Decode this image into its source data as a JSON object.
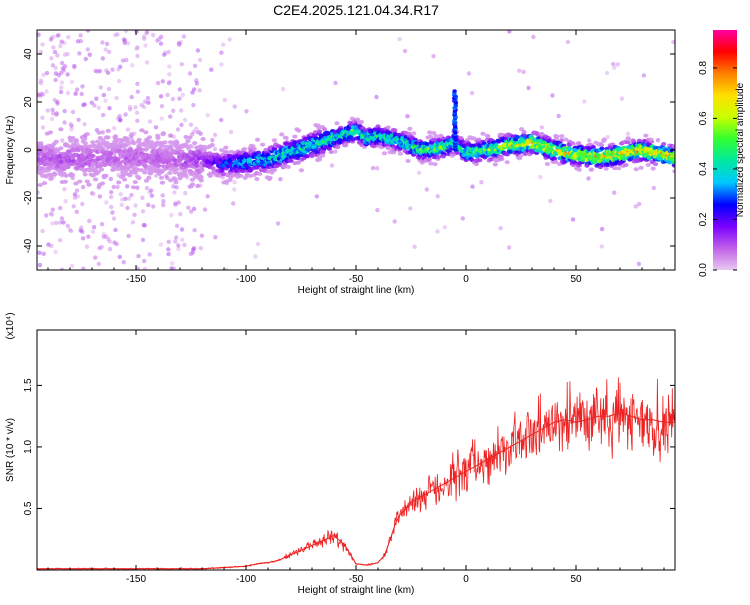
{
  "title": "C2E4.2025.121.04.34.R17",
  "chart_data": [
    {
      "type": "heatmap",
      "xlabel": "Height of straight line (km)",
      "ylabel": "Frequency (Hz)",
      "xlim": [
        -195,
        95
      ],
      "ylim": [
        -50,
        50
      ],
      "xticks": [
        -150,
        -100,
        -50,
        0,
        50
      ],
      "yticks": [
        -40,
        -20,
        0,
        20,
        40
      ],
      "colorbar": {
        "label": "Normalized spectral amplitude",
        "range": [
          0,
          0.95
        ],
        "ticks": [
          0.0,
          0.2,
          0.4,
          0.6,
          0.8
        ],
        "colors": [
          "#e8c8f0",
          "#c060e8",
          "#7a00ff",
          "#0000ff",
          "#00c8ff",
          "#00e8a0",
          "#30ff30",
          "#c8ff00",
          "#ffe000",
          "#ff8000",
          "#ff0000",
          "#ff00a0"
        ]
      },
      "ridge": {
        "x": [
          -195,
          -180,
          -165,
          -150,
          -135,
          -120,
          -110,
          -100,
          -90,
          -80,
          -70,
          -60,
          -50,
          -45,
          -40,
          -30,
          -20,
          -10,
          -5,
          0,
          10,
          20,
          30,
          40,
          50,
          60,
          70,
          80,
          95
        ],
        "freq": [
          -3,
          -4,
          -3,
          -3,
          -4,
          -4,
          -6,
          -5,
          -4,
          -1,
          2,
          5,
          8,
          5,
          6,
          4,
          0,
          1,
          3,
          -1,
          0,
          2,
          3,
          0,
          -2,
          -3,
          -2,
          0,
          -3
        ],
        "peak_amplitude": [
          0.1,
          0.12,
          0.1,
          0.1,
          0.1,
          0.15,
          0.3,
          0.4,
          0.45,
          0.5,
          0.5,
          0.5,
          0.55,
          0.5,
          0.5,
          0.5,
          0.55,
          0.6,
          0.5,
          0.55,
          0.6,
          0.7,
          0.75,
          0.8,
          0.75,
          0.8,
          0.85,
          0.8,
          0.75
        ]
      },
      "spike": {
        "x": -5,
        "freq_range": [
          0,
          25
        ]
      },
      "grid": false
    },
    {
      "type": "line",
      "xlabel": "Height of straight line (km)",
      "ylabel": "SNR (10 * v/v)",
      "y_multiplier": "(x10⁴)",
      "xlim": [
        -195,
        95
      ],
      "ylim": [
        0,
        1.95
      ],
      "xticks": [
        -150,
        -100,
        -50,
        0,
        50
      ],
      "yticks": [
        0.5,
        1.0,
        1.5
      ],
      "color": "#ee2222",
      "series": [
        {
          "x": [
            -195,
            -180,
            -160,
            -140,
            -120,
            -110,
            -100,
            -95,
            -90,
            -85,
            -80,
            -75,
            -70,
            -65,
            -60,
            -55,
            -50,
            -45,
            -40,
            -37,
            -35,
            -32,
            -30,
            -27,
            -25,
            -22,
            -20,
            -15,
            -10,
            -5,
            0,
            5,
            10,
            15,
            20,
            25,
            30,
            35,
            40,
            45,
            50,
            55,
            60,
            65,
            70,
            75,
            80,
            85,
            90,
            95
          ],
          "values": [
            0.01,
            0.01,
            0.01,
            0.01,
            0.01,
            0.02,
            0.03,
            0.05,
            0.06,
            0.08,
            0.12,
            0.16,
            0.2,
            0.24,
            0.28,
            0.2,
            0.05,
            0.04,
            0.06,
            0.12,
            0.22,
            0.38,
            0.45,
            0.5,
            0.55,
            0.58,
            0.6,
            0.65,
            0.7,
            0.75,
            0.8,
            0.85,
            0.9,
            0.95,
            1.0,
            1.05,
            1.1,
            1.15,
            1.2,
            1.22,
            1.2,
            1.22,
            1.25,
            1.25,
            1.28,
            1.25,
            1.22,
            1.22,
            1.2,
            1.2
          ]
        }
      ],
      "grid": false
    }
  ]
}
